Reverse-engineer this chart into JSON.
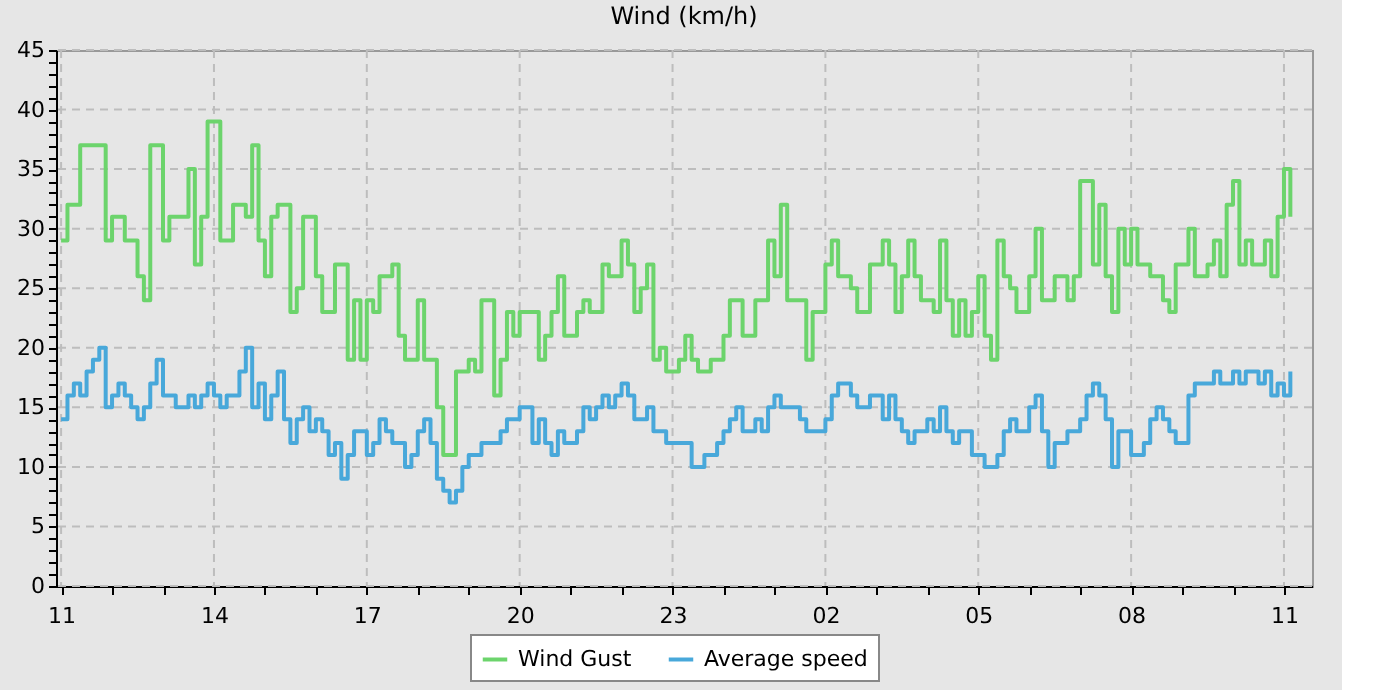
{
  "chart_data": {
    "type": "step",
    "title": "Wind (km/h)",
    "categories": [
      "11",
      null,
      null,
      null,
      null,
      null,
      null,
      null,
      null,
      null,
      null,
      null,
      null,
      null,
      null,
      null,
      null,
      null,
      null,
      null,
      null,
      null,
      null,
      null,
      "14",
      null,
      null,
      null,
      null,
      null,
      null,
      null,
      null,
      null,
      null,
      null,
      null,
      null,
      null,
      null,
      null,
      null,
      null,
      null,
      null,
      null,
      null,
      null,
      "17",
      null,
      null,
      null,
      null,
      null,
      null,
      null,
      null,
      null,
      null,
      null,
      null,
      null,
      null,
      null,
      null,
      null,
      null,
      null,
      null,
      null,
      null,
      null,
      "20",
      null,
      null,
      null,
      null,
      null,
      null,
      null,
      null,
      null,
      null,
      null,
      null,
      null,
      null,
      null,
      null,
      null,
      null,
      null,
      null,
      null,
      null,
      null,
      "23",
      null,
      null,
      null,
      null,
      null,
      null,
      null,
      null,
      null,
      null,
      null,
      null,
      null,
      null,
      null,
      null,
      null,
      null,
      null,
      null,
      null,
      null,
      null,
      "02",
      null,
      null,
      null,
      null,
      null,
      null,
      null,
      null,
      null,
      null,
      null,
      null,
      null,
      null,
      null,
      null,
      null,
      null,
      null,
      null,
      null,
      null,
      null,
      "05",
      null,
      null,
      null,
      null,
      null,
      null,
      null,
      null,
      null,
      null,
      null,
      null,
      null,
      null,
      null,
      null,
      null,
      null,
      null,
      null,
      null,
      null,
      null,
      "08",
      null,
      null,
      null,
      null,
      null,
      null,
      null,
      null,
      null,
      null,
      null,
      null,
      null,
      null,
      null,
      null,
      null,
      null,
      null,
      null,
      null,
      null,
      null,
      "11",
      null
    ],
    "series": [
      {
        "name": "Wind Gust",
        "color": "#6cd46c",
        "values": [
          29,
          32,
          32,
          37,
          37,
          37,
          37,
          29,
          31,
          31,
          29,
          29,
          26,
          24,
          37,
          37,
          29,
          31,
          31,
          31,
          35,
          27,
          31,
          39,
          39,
          29,
          29,
          32,
          32,
          31,
          37,
          29,
          26,
          31,
          32,
          32,
          23,
          25,
          31,
          31,
          26,
          23,
          23,
          27,
          27,
          19,
          24,
          19,
          24,
          23,
          26,
          26,
          27,
          21,
          19,
          19,
          24,
          19,
          19,
          15,
          11,
          11,
          18,
          18,
          19,
          18,
          24,
          24,
          16,
          19,
          23,
          21,
          23,
          23,
          23,
          19,
          21,
          23,
          26,
          21,
          21,
          23,
          24,
          23,
          23,
          27,
          26,
          26,
          29,
          27,
          23,
          25,
          27,
          19,
          20,
          18,
          18,
          19,
          21,
          19,
          18,
          18,
          19,
          19,
          21,
          24,
          24,
          21,
          21,
          24,
          24,
          29,
          26,
          32,
          24,
          24,
          24,
          19,
          23,
          23,
          27,
          29,
          26,
          26,
          25,
          23,
          23,
          27,
          27,
          29,
          27,
          23,
          26,
          29,
          26,
          24,
          24,
          23,
          29,
          24,
          21,
          24,
          21,
          23,
          26,
          21,
          19,
          29,
          26,
          25,
          23,
          23,
          26,
          30,
          24,
          24,
          26,
          26,
          24,
          26,
          34,
          34,
          27,
          32,
          26,
          23,
          30,
          27,
          30,
          27,
          27,
          26,
          26,
          24,
          23,
          27,
          27,
          30,
          26,
          26,
          27,
          29,
          26,
          32,
          34,
          27,
          29,
          27,
          27,
          29,
          26,
          31,
          35,
          31
        ]
      },
      {
        "name": "Average speed",
        "color": "#48a8da",
        "values": [
          14,
          16,
          17,
          16,
          18,
          19,
          20,
          15,
          16,
          17,
          16,
          15,
          14,
          15,
          17,
          19,
          16,
          16,
          15,
          15,
          16,
          15,
          16,
          17,
          16,
          15,
          16,
          16,
          18,
          20,
          15,
          17,
          14,
          16,
          18,
          14,
          12,
          14,
          15,
          13,
          14,
          13,
          11,
          12,
          9,
          11,
          13,
          13,
          11,
          12,
          14,
          13,
          12,
          12,
          10,
          11,
          13,
          14,
          12,
          9,
          8,
          7,
          8,
          10,
          11,
          11,
          12,
          12,
          12,
          13,
          14,
          14,
          15,
          15,
          12,
          14,
          12,
          11,
          13,
          12,
          12,
          13,
          15,
          14,
          15,
          16,
          15,
          16,
          17,
          16,
          14,
          14,
          15,
          13,
          13,
          12,
          12,
          12,
          12,
          10,
          10,
          11,
          11,
          12,
          13,
          14,
          15,
          13,
          13,
          14,
          13,
          15,
          16,
          15,
          15,
          15,
          14,
          13,
          13,
          13,
          14,
          16,
          17,
          17,
          16,
          15,
          15,
          16,
          16,
          14,
          16,
          14,
          13,
          12,
          13,
          13,
          14,
          13,
          15,
          13,
          12,
          13,
          13,
          11,
          11,
          10,
          10,
          11,
          13,
          14,
          13,
          13,
          15,
          16,
          13,
          10,
          12,
          12,
          13,
          13,
          14,
          16,
          17,
          16,
          14,
          10,
          13,
          13,
          11,
          11,
          12,
          14,
          15,
          14,
          13,
          12,
          12,
          16,
          17,
          17,
          17,
          18,
          17,
          17,
          18,
          17,
          18,
          18,
          17,
          18,
          16,
          17,
          16,
          18
        ]
      }
    ],
    "ylim": [
      0,
      45
    ],
    "yticks": [
      0,
      {
        "value": 1,
        "label": null
      },
      {
        "value": 2,
        "label": null
      },
      {
        "value": 3,
        "label": null
      },
      {
        "value": 4,
        "label": null
      },
      5,
      {
        "value": 6,
        "label": null
      },
      {
        "value": 7,
        "label": null
      },
      {
        "value": 8,
        "label": null
      },
      {
        "value": 9,
        "label": null
      },
      10,
      {
        "value": 11,
        "label": null
      },
      {
        "value": 12,
        "label": null
      },
      {
        "value": 13,
        "label": null
      },
      {
        "value": 14,
        "label": null
      },
      15,
      {
        "value": 16,
        "label": null
      },
      {
        "value": 17,
        "label": null
      },
      {
        "value": 18,
        "label": null
      },
      {
        "value": 19,
        "label": null
      },
      20,
      {
        "value": 21,
        "label": null
      },
      {
        "value": 22,
        "label": null
      },
      {
        "value": 23,
        "label": null
      },
      {
        "value": 24,
        "label": null
      },
      25,
      {
        "value": 26,
        "label": null
      },
      {
        "value": 27,
        "label": null
      },
      {
        "value": 28,
        "label": null
      },
      {
        "value": 29,
        "label": null
      },
      30,
      {
        "value": 31,
        "label": null
      },
      {
        "value": 32,
        "label": null
      },
      {
        "value": 33,
        "label": null
      },
      {
        "value": 34,
        "label": null
      },
      35,
      {
        "value": 36,
        "label": null
      },
      {
        "value": 37,
        "label": null
      },
      {
        "value": 38,
        "label": null
      },
      {
        "value": 39,
        "label": null
      },
      40,
      {
        "value": 41,
        "label": null
      },
      {
        "value": 42,
        "label": null
      },
      {
        "value": 43,
        "label": null
      },
      {
        "value": 44,
        "label": null
      },
      45
    ],
    "grid": true,
    "legend": "bottom"
  }
}
